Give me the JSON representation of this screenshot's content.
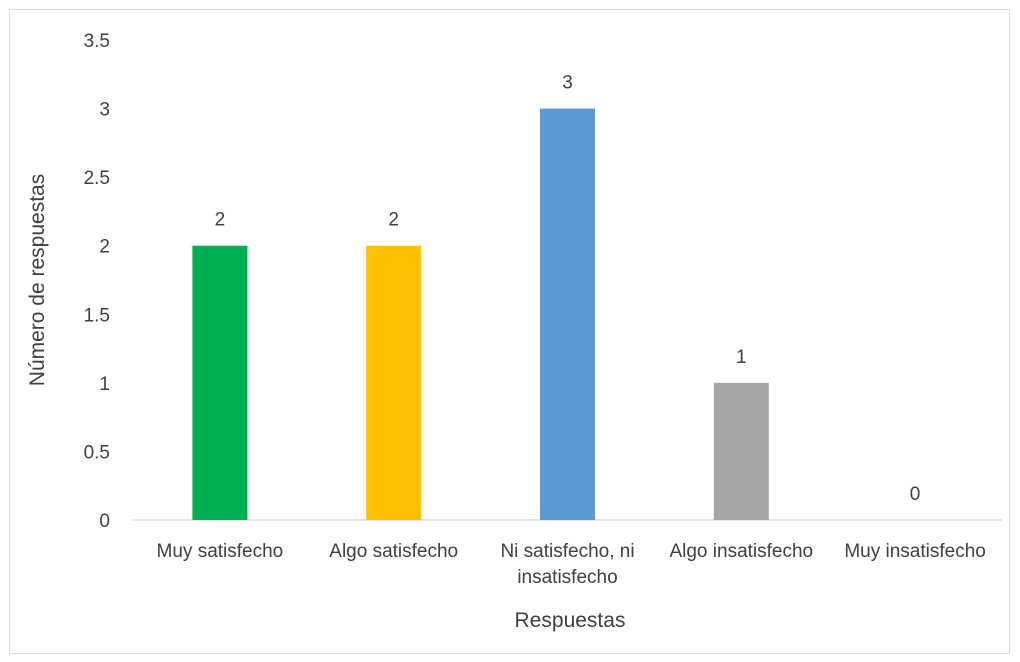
{
  "chart_data": {
    "type": "bar",
    "categories": [
      [
        "Muy satisfecho"
      ],
      [
        "Algo satisfecho"
      ],
      [
        "Ni satisfecho, ni",
        "insatisfecho"
      ],
      [
        "Algo insatisfecho"
      ],
      [
        "Muy insatisfecho"
      ]
    ],
    "values": [
      2,
      2,
      3,
      1,
      0
    ],
    "colors": [
      "#00b050",
      "#ffc000",
      "#5b9bd5",
      "#a5a5a5",
      "#7f7f7f"
    ],
    "data_labels": [
      "2",
      "2",
      "3",
      "1",
      "0"
    ],
    "title": "",
    "xlabel": "Respuestas",
    "ylabel": "Número de respuestas",
    "ylim": [
      0,
      3.5
    ],
    "y_ticks": [
      0,
      0.5,
      1,
      1.5,
      2,
      2.5,
      3,
      3.5
    ],
    "y_tick_labels": [
      "0",
      "0.5",
      "1",
      "1.5",
      "2",
      "2.5",
      "3",
      "3.5"
    ],
    "grid": false,
    "legend": "none",
    "axis_color": "#d9d9d9"
  }
}
